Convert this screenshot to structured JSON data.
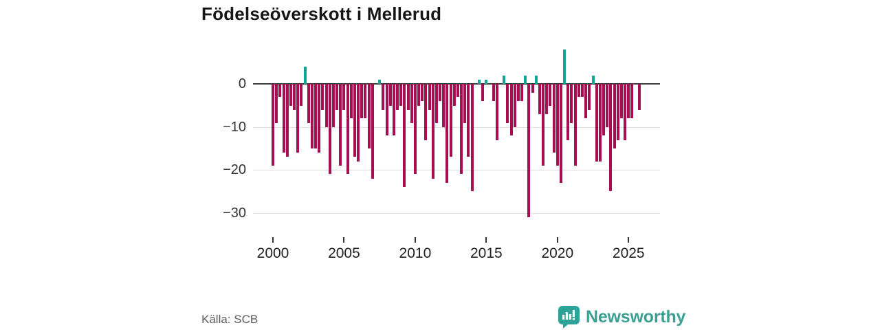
{
  "header": {
    "title": "Födelseöverskott i Mellerud"
  },
  "footer": {
    "source": "Källa: SCB",
    "brand": "Newsworthy"
  },
  "chart_data": {
    "type": "bar",
    "title": "Födelseöverskott i Mellerud",
    "x_unit": "quarter",
    "x_start_quarter": "2000-Q1",
    "x_end_quarter": "2025-Q4",
    "values": [
      -19,
      -9,
      -3,
      -16,
      -17,
      -5,
      -6,
      -16,
      -5,
      4,
      -9,
      -15,
      -15,
      -16,
      -6,
      -10,
      -21,
      -10,
      -6,
      -19,
      -6,
      -21,
      -8,
      -17,
      -18,
      -8,
      -8,
      -15,
      -22,
      0,
      1,
      -6,
      -12,
      -5,
      -12,
      -6,
      -5,
      -24,
      -6,
      -9,
      -21,
      -5,
      -4,
      -13,
      -6,
      -22,
      -9,
      -4,
      -10,
      -23,
      -17,
      -5,
      -3,
      -21,
      -9,
      -17,
      -25,
      0,
      1,
      -4,
      1,
      0,
      -4,
      -13,
      0,
      2,
      -9,
      -12,
      -10,
      -4,
      -4,
      2,
      -31,
      -2,
      2,
      -7,
      -19,
      -7,
      -5,
      -16,
      -19,
      -23,
      8,
      -13,
      -9,
      -19,
      -3,
      -3,
      -8,
      -6,
      2,
      -18,
      -18,
      -12,
      -10,
      -25,
      -15,
      -13,
      -8,
      -13,
      -8,
      -8,
      0,
      -6
    ],
    "yticks": [
      0,
      -10,
      -20,
      -30
    ],
    "xticks": [
      {
        "label": "2000",
        "index": 0
      },
      {
        "label": "2005",
        "index": 20
      },
      {
        "label": "2010",
        "index": 40
      },
      {
        "label": "2015",
        "index": 60
      },
      {
        "label": "2020",
        "index": 80
      },
      {
        "label": "2025",
        "index": 100
      }
    ],
    "ylim": [
      -32,
      10
    ],
    "grid": "horizontal",
    "legend": "none",
    "colors": {
      "positive": "#12A499",
      "negative": "#A60E52",
      "zero_axis": "#3D3D3D",
      "gridline": "#DCDCDC",
      "brand_teal": "#3AA093"
    },
    "source": "Källa: SCB"
  }
}
